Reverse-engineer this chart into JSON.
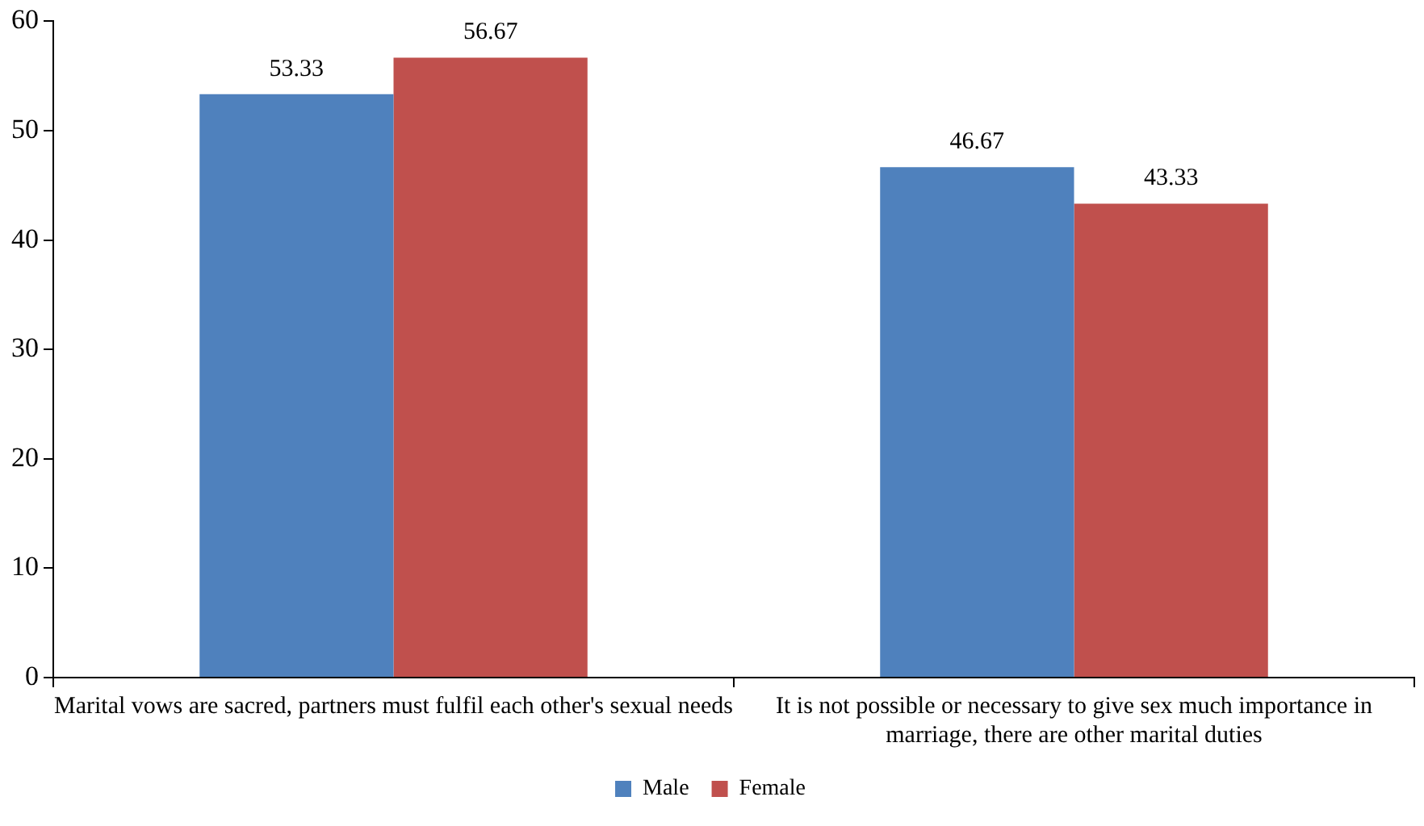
{
  "chart_data": {
    "type": "bar",
    "categories": [
      "Marital vows are sacred, partners must fulfil each other's sexual needs",
      "It is not possible or necessary to give sex much importance in marriage, there are other marital duties"
    ],
    "series": [
      {
        "name": "Male",
        "color": "#4f81bd",
        "values": [
          53.33,
          46.67
        ]
      },
      {
        "name": "Female",
        "color": "#c0504d",
        "values": [
          56.67,
          43.33
        ]
      }
    ],
    "ylim": [
      0,
      60
    ],
    "yticks": [
      0,
      10,
      20,
      30,
      40,
      50,
      60
    ],
    "grid": false,
    "legend": "bottom",
    "data_labels": true
  }
}
